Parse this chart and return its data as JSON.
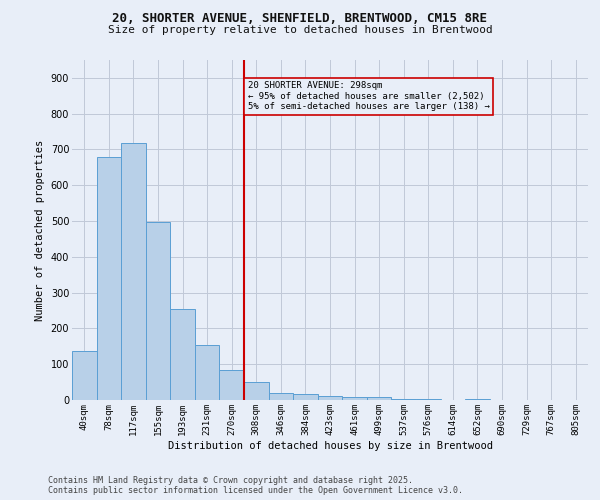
{
  "title_line1": "20, SHORTER AVENUE, SHENFIELD, BRENTWOOD, CM15 8RE",
  "title_line2": "Size of property relative to detached houses in Brentwood",
  "xlabel": "Distribution of detached houses by size in Brentwood",
  "ylabel": "Number of detached properties",
  "footer_line1": "Contains HM Land Registry data © Crown copyright and database right 2025.",
  "footer_line2": "Contains public sector information licensed under the Open Government Licence v3.0.",
  "categories": [
    "40sqm",
    "78sqm",
    "117sqm",
    "155sqm",
    "193sqm",
    "231sqm",
    "270sqm",
    "308sqm",
    "346sqm",
    "384sqm",
    "423sqm",
    "461sqm",
    "499sqm",
    "537sqm",
    "576sqm",
    "614sqm",
    "652sqm",
    "690sqm",
    "729sqm",
    "767sqm",
    "805sqm"
  ],
  "values": [
    138,
    678,
    718,
    498,
    255,
    155,
    85,
    50,
    20,
    17,
    10,
    8,
    7,
    4,
    3,
    1,
    2,
    1,
    1,
    0,
    1
  ],
  "bar_color": "#b8d0e8",
  "bar_edge_color": "#5a9fd4",
  "bg_color": "#e8eef8",
  "grid_color": "#c0c8d8",
  "annotation_text": "20 SHORTER AVENUE: 298sqm\n← 95% of detached houses are smaller (2,502)\n5% of semi-detached houses are larger (138) →",
  "vline_index": 7,
  "vline_color": "#cc0000",
  "annotation_box_color": "#cc0000",
  "ylim": [
    0,
    950
  ],
  "yticks": [
    0,
    100,
    200,
    300,
    400,
    500,
    600,
    700,
    800,
    900
  ]
}
